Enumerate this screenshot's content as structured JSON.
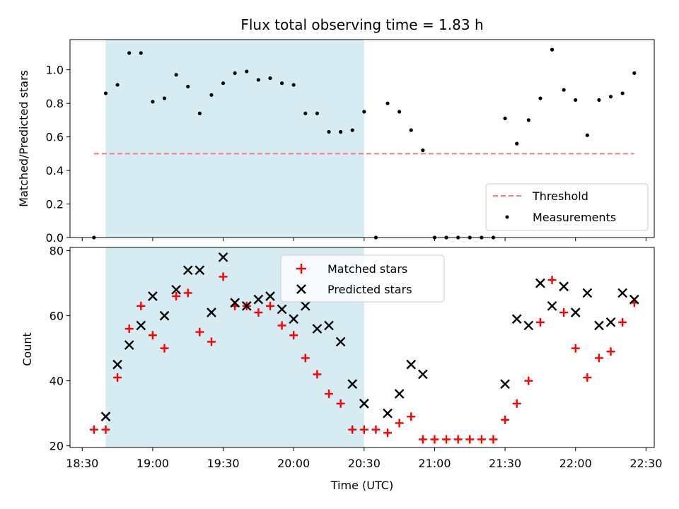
{
  "chart_data": [
    {
      "type": "scatter",
      "title": "Flux total observing time = 1.83 h",
      "xlabel": "",
      "ylabel": "Matched/Predicted stars",
      "ylim": [
        0,
        1.18
      ],
      "y_ticks": [
        "0.0",
        "0.2",
        "0.4",
        "0.6",
        "0.8",
        "1.0"
      ],
      "shaded_interval": [
        "18:40",
        "20:30"
      ],
      "legend_position": "lower-right",
      "threshold": {
        "name": "Threshold",
        "value": 0.5,
        "x_range": [
          "18:35",
          "22:25"
        ],
        "color": "#f08080"
      },
      "series": [
        {
          "name": "Measurements",
          "color": "#000000",
          "x": [
            "18:35",
            "18:40",
            "18:45",
            "18:50",
            "18:55",
            "19:00",
            "19:05",
            "19:10",
            "19:15",
            "19:20",
            "19:25",
            "19:30",
            "19:35",
            "19:40",
            "19:45",
            "19:50",
            "19:55",
            "20:00",
            "20:05",
            "20:10",
            "20:15",
            "20:20",
            "20:25",
            "20:30",
            "20:35",
            "20:40",
            "20:45",
            "20:50",
            "20:55",
            "21:00",
            "21:05",
            "21:10",
            "21:15",
            "21:20",
            "21:25",
            "21:30",
            "21:35",
            "21:40",
            "21:45",
            "21:50",
            "21:55",
            "22:00",
            "22:05",
            "22:10",
            "22:15",
            "22:20",
            "22:25"
          ],
          "y": [
            0.0,
            0.86,
            0.91,
            1.1,
            1.1,
            0.81,
            0.83,
            0.97,
            0.9,
            0.74,
            0.85,
            0.92,
            0.98,
            0.99,
            0.94,
            0.95,
            0.92,
            0.91,
            0.74,
            0.74,
            0.63,
            0.63,
            0.64,
            0.75,
            0.0,
            0.8,
            0.75,
            0.64,
            0.52,
            0.0,
            0.0,
            0.0,
            0.0,
            0.0,
            0.0,
            0.71,
            0.56,
            0.7,
            0.83,
            1.12,
            0.88,
            0.82,
            0.61,
            0.82,
            0.84,
            0.86,
            0.98
          ]
        }
      ]
    },
    {
      "type": "scatter",
      "title": "",
      "xlabel": "Time (UTC)",
      "ylabel": "Count",
      "ylim": [
        19.5,
        81
      ],
      "y_ticks": [
        "20",
        "40",
        "60",
        "80"
      ],
      "x_ticks": [
        "18:30",
        "19:00",
        "19:30",
        "20:00",
        "20:30",
        "21:00",
        "21:30",
        "22:00",
        "22:30"
      ],
      "shaded_interval": [
        "18:40",
        "20:30"
      ],
      "legend_position": "top-center",
      "series": [
        {
          "name": "Matched stars",
          "marker": "plus",
          "color": "#ff0000",
          "x": [
            "18:35",
            "18:40",
            "18:45",
            "18:50",
            "18:55",
            "19:00",
            "19:05",
            "19:10",
            "19:15",
            "19:20",
            "19:25",
            "19:30",
            "19:35",
            "19:40",
            "19:45",
            "19:50",
            "19:55",
            "20:00",
            "20:05",
            "20:10",
            "20:15",
            "20:20",
            "20:25",
            "20:30",
            "20:35",
            "20:40",
            "20:45",
            "20:50",
            "20:55",
            "21:00",
            "21:05",
            "21:10",
            "21:15",
            "21:20",
            "21:25",
            "21:30",
            "21:35",
            "21:40",
            "21:45",
            "21:50",
            "21:55",
            "22:00",
            "22:05",
            "22:10",
            "22:15",
            "22:20",
            "22:25"
          ],
          "y": [
            25,
            25,
            41,
            56,
            63,
            54,
            50,
            66,
            67,
            55,
            52,
            72,
            63,
            63,
            61,
            63,
            57,
            54,
            47,
            42,
            36,
            33,
            25,
            25,
            25,
            24,
            27,
            29,
            22,
            22,
            22,
            22,
            22,
            22,
            22,
            28,
            33,
            40,
            58,
            71,
            61,
            50,
            41,
            47,
            49,
            58,
            64
          ]
        },
        {
          "name": "Predicted stars",
          "marker": "x",
          "color": "#000000",
          "x": [
            "18:40",
            "18:45",
            "18:50",
            "18:55",
            "19:00",
            "19:05",
            "19:10",
            "19:15",
            "19:20",
            "19:25",
            "19:30",
            "19:35",
            "19:40",
            "19:45",
            "19:50",
            "19:55",
            "20:00",
            "20:05",
            "20:10",
            "20:15",
            "20:20",
            "20:25",
            "20:30",
            "20:40",
            "20:45",
            "20:50",
            "20:55",
            "21:30",
            "21:35",
            "21:40",
            "21:45",
            "21:50",
            "21:55",
            "22:00",
            "22:05",
            "22:10",
            "22:15",
            "22:20",
            "22:25"
          ],
          "y": [
            29,
            45,
            51,
            57,
            66,
            60,
            68,
            74,
            74,
            61,
            78,
            64,
            63,
            65,
            66,
            62,
            59,
            63,
            56,
            57,
            52,
            39,
            33,
            30,
            36,
            45,
            42,
            39,
            59,
            57,
            70,
            63,
            69,
            61,
            67,
            57,
            58,
            67,
            65
          ]
        }
      ]
    }
  ]
}
